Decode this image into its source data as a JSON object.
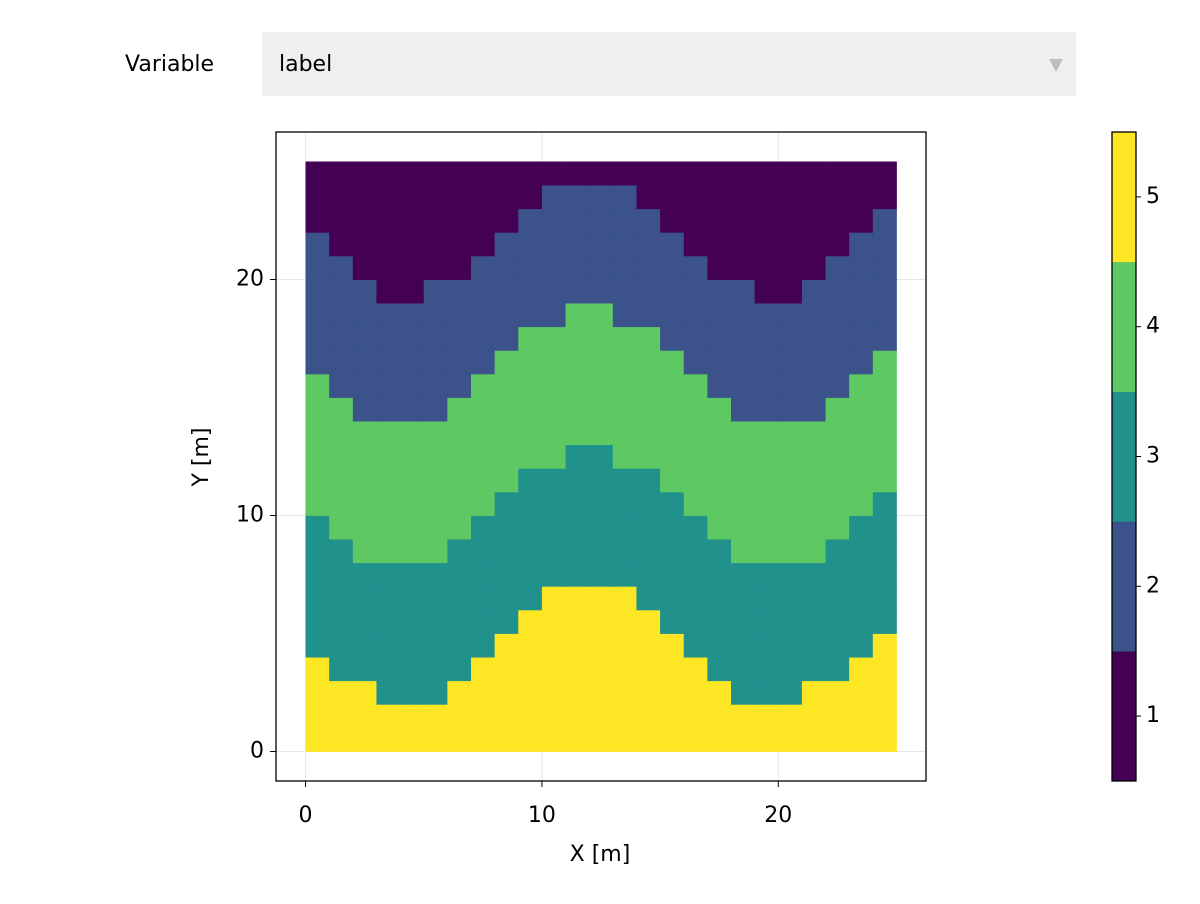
{
  "controls": {
    "label": "Variable",
    "selected": "label"
  },
  "chart_data": {
    "type": "heatmap",
    "x_label": "X [m]",
    "y_label": "Y [m]",
    "x_range": [
      0,
      25
    ],
    "y_range": [
      0,
      25
    ],
    "xlim": [
      -1.25,
      26.25
    ],
    "ylim": [
      -1.25,
      26.25
    ],
    "xticks": [
      0,
      10,
      20
    ],
    "yticks": [
      0,
      10,
      20
    ],
    "grid": true,
    "colors": [
      "#440154",
      "#3b528b",
      "#21918c",
      "#5ec962",
      "#fde725"
    ],
    "colorbar": {
      "lim": [
        0.5,
        5.5
      ],
      "ticks": [
        1,
        2,
        3,
        4,
        5
      ]
    },
    "z": [
      [
        5,
        5,
        5,
        5,
        5,
        5,
        5,
        5,
        5,
        5,
        5,
        5,
        5,
        5,
        5,
        5,
        5,
        5,
        5,
        5,
        5,
        5,
        5,
        5,
        5
      ],
      [
        5,
        5,
        5,
        5,
        5,
        5,
        5,
        5,
        5,
        5,
        5,
        5,
        5,
        5,
        5,
        5,
        5,
        5,
        5,
        5,
        5,
        5,
        5,
        5,
        5
      ],
      [
        5,
        5,
        5,
        3,
        3,
        3,
        5,
        5,
        5,
        5,
        5,
        5,
        5,
        5,
        5,
        5,
        5,
        5,
        3,
        3,
        3,
        5,
        5,
        5,
        5
      ],
      [
        5,
        3,
        3,
        3,
        3,
        3,
        3,
        5,
        5,
        5,
        5,
        5,
        5,
        5,
        5,
        5,
        5,
        3,
        3,
        3,
        3,
        3,
        3,
        5,
        5
      ],
      [
        3,
        3,
        3,
        3,
        3,
        3,
        3,
        3,
        5,
        5,
        5,
        5,
        5,
        5,
        5,
        5,
        3,
        3,
        3,
        3,
        3,
        3,
        3,
        3,
        5
      ],
      [
        3,
        3,
        3,
        3,
        3,
        3,
        3,
        3,
        3,
        5,
        5,
        5,
        5,
        5,
        5,
        3,
        3,
        3,
        3,
        3,
        3,
        3,
        3,
        3,
        3
      ],
      [
        3,
        3,
        3,
        3,
        3,
        3,
        3,
        3,
        3,
        3,
        5,
        5,
        5,
        5,
        3,
        3,
        3,
        3,
        3,
        3,
        3,
        3,
        3,
        3,
        3
      ],
      [
        3,
        3,
        3,
        3,
        3,
        3,
        3,
        3,
        3,
        3,
        3,
        3,
        3,
        3,
        3,
        3,
        3,
        3,
        3,
        3,
        3,
        3,
        3,
        3,
        3
      ],
      [
        3,
        3,
        4,
        4,
        4,
        4,
        3,
        3,
        3,
        3,
        3,
        3,
        3,
        3,
        3,
        3,
        3,
        3,
        4,
        4,
        4,
        4,
        3,
        3,
        3
      ],
      [
        3,
        4,
        4,
        4,
        4,
        4,
        4,
        3,
        3,
        3,
        3,
        3,
        3,
        3,
        3,
        3,
        3,
        4,
        4,
        4,
        4,
        4,
        4,
        3,
        3
      ],
      [
        4,
        4,
        4,
        4,
        4,
        4,
        4,
        4,
        3,
        3,
        3,
        3,
        3,
        3,
        3,
        3,
        4,
        4,
        4,
        4,
        4,
        4,
        4,
        4,
        3
      ],
      [
        4,
        4,
        4,
        4,
        4,
        4,
        4,
        4,
        4,
        3,
        3,
        3,
        3,
        3,
        3,
        4,
        4,
        4,
        4,
        4,
        4,
        4,
        4,
        4,
        4
      ],
      [
        4,
        4,
        4,
        4,
        4,
        4,
        4,
        4,
        4,
        4,
        4,
        3,
        3,
        4,
        4,
        4,
        4,
        4,
        4,
        4,
        4,
        4,
        4,
        4,
        4
      ],
      [
        4,
        4,
        4,
        4,
        4,
        4,
        4,
        4,
        4,
        4,
        4,
        4,
        4,
        4,
        4,
        4,
        4,
        4,
        4,
        4,
        4,
        4,
        4,
        4,
        4
      ],
      [
        4,
        4,
        2,
        2,
        2,
        2,
        4,
        4,
        4,
        4,
        4,
        4,
        4,
        4,
        4,
        4,
        4,
        4,
        2,
        2,
        2,
        2,
        4,
        4,
        4
      ],
      [
        4,
        2,
        2,
        2,
        2,
        2,
        2,
        4,
        4,
        4,
        4,
        4,
        4,
        4,
        4,
        4,
        4,
        2,
        2,
        2,
        2,
        2,
        2,
        4,
        4
      ],
      [
        2,
        2,
        2,
        2,
        2,
        2,
        2,
        2,
        4,
        4,
        4,
        4,
        4,
        4,
        4,
        4,
        2,
        2,
        2,
        2,
        2,
        2,
        2,
        2,
        4
      ],
      [
        2,
        2,
        2,
        2,
        2,
        2,
        2,
        2,
        2,
        4,
        4,
        4,
        4,
        4,
        4,
        2,
        2,
        2,
        2,
        2,
        2,
        2,
        2,
        2,
        2
      ],
      [
        2,
        2,
        2,
        2,
        2,
        2,
        2,
        2,
        2,
        2,
        2,
        4,
        4,
        2,
        2,
        2,
        2,
        2,
        2,
        2,
        2,
        2,
        2,
        2,
        2
      ],
      [
        2,
        2,
        2,
        1,
        1,
        2,
        2,
        2,
        2,
        2,
        2,
        2,
        2,
        2,
        2,
        2,
        2,
        2,
        2,
        1,
        1,
        2,
        2,
        2,
        2
      ],
      [
        2,
        2,
        1,
        1,
        1,
        1,
        1,
        2,
        2,
        2,
        2,
        2,
        2,
        2,
        2,
        2,
        2,
        1,
        1,
        1,
        1,
        1,
        2,
        2,
        2
      ],
      [
        2,
        1,
        1,
        1,
        1,
        1,
        1,
        1,
        2,
        2,
        2,
        2,
        2,
        2,
        2,
        2,
        1,
        1,
        1,
        1,
        1,
        1,
        1,
        2,
        2
      ],
      [
        1,
        1,
        1,
        1,
        1,
        1,
        1,
        1,
        1,
        2,
        2,
        2,
        2,
        2,
        2,
        1,
        1,
        1,
        1,
        1,
        1,
        1,
        1,
        1,
        2
      ],
      [
        1,
        1,
        1,
        1,
        1,
        1,
        1,
        1,
        1,
        1,
        2,
        2,
        2,
        2,
        1,
        1,
        1,
        1,
        1,
        1,
        1,
        1,
        1,
        1,
        1
      ],
      [
        1,
        1,
        1,
        1,
        1,
        1,
        1,
        1,
        1,
        1,
        1,
        1,
        1,
        1,
        1,
        1,
        1,
        1,
        1,
        1,
        1,
        1,
        1,
        1,
        1
      ]
    ]
  }
}
